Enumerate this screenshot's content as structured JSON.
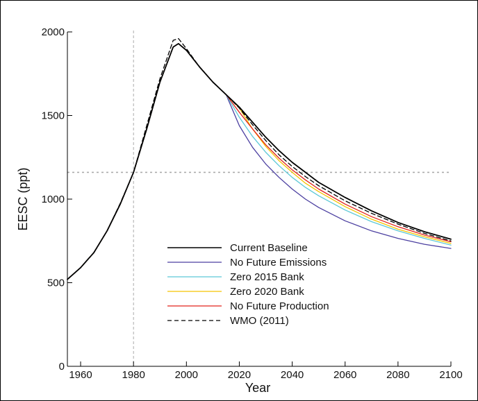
{
  "chart_data": {
    "type": "line",
    "xlabel": "Year",
    "ylabel": "EESC (ppt)",
    "xlim": [
      1955,
      2100
    ],
    "ylim": [
      0,
      2000
    ],
    "x_ticks": [
      1960,
      1980,
      2000,
      2020,
      2040,
      2060,
      2080,
      2100
    ],
    "y_ticks": [
      0,
      500,
      1000,
      1500,
      2000
    ],
    "grid": false,
    "legend_position": "bottom-center",
    "reference_lines": {
      "vertical_x": 1980,
      "horizontal_y": 1160,
      "color": "#aaaaaa"
    },
    "x": [
      1955,
      1960,
      1965,
      1970,
      1975,
      1980,
      1985,
      1990,
      1995,
      1997,
      2000,
      2005,
      2010,
      2015,
      2020,
      2025,
      2030,
      2035,
      2040,
      2045,
      2050,
      2060,
      2070,
      2080,
      2090,
      2100
    ],
    "series": [
      {
        "name": "Current Baseline",
        "color": "#000000",
        "dash": "solid",
        "values": [
          520,
          590,
          680,
          810,
          970,
          1160,
          1420,
          1700,
          1910,
          1930,
          1890,
          1790,
          1700,
          1625,
          1550,
          1460,
          1370,
          1290,
          1220,
          1160,
          1100,
          1010,
          930,
          860,
          805,
          760
        ]
      },
      {
        "name": "No Future Emissions",
        "color": "#4b3fa0",
        "dash": "solid",
        "values": [
          520,
          590,
          680,
          810,
          970,
          1160,
          1420,
          1700,
          1910,
          1930,
          1890,
          1790,
          1700,
          1625,
          1440,
          1310,
          1210,
          1130,
          1060,
          1000,
          950,
          870,
          810,
          765,
          730,
          705
        ]
      },
      {
        "name": "Zero 2015 Bank",
        "color": "#5cc8d6",
        "dash": "solid",
        "values": [
          520,
          590,
          680,
          810,
          970,
          1160,
          1420,
          1700,
          1910,
          1930,
          1890,
          1790,
          1700,
          1625,
          1490,
          1375,
          1280,
          1200,
          1130,
          1070,
          1020,
          935,
          865,
          810,
          765,
          725
        ]
      },
      {
        "name": "Zero 2020 Bank",
        "color": "#f5c400",
        "dash": "solid",
        "values": [
          520,
          590,
          680,
          810,
          970,
          1160,
          1420,
          1700,
          1910,
          1930,
          1890,
          1790,
          1700,
          1625,
          1545,
          1420,
          1315,
          1230,
          1160,
          1095,
          1045,
          955,
          880,
          820,
          775,
          735
        ]
      },
      {
        "name": "No Future Production",
        "color": "#e2231a",
        "dash": "solid",
        "values": [
          520,
          590,
          680,
          810,
          970,
          1160,
          1420,
          1700,
          1910,
          1930,
          1890,
          1790,
          1700,
          1625,
          1520,
          1420,
          1325,
          1245,
          1175,
          1115,
          1060,
          970,
          895,
          835,
          785,
          745
        ]
      },
      {
        "name": "WMO (2011)",
        "color": "#000000",
        "dash": "dashed",
        "values": [
          520,
          590,
          680,
          810,
          975,
          1160,
          1440,
          1720,
          1950,
          1960,
          1900,
          1790,
          1700,
          1625,
          1545,
          1445,
          1350,
          1265,
          1195,
          1135,
          1080,
          990,
          915,
          850,
          795,
          750
        ]
      }
    ]
  }
}
